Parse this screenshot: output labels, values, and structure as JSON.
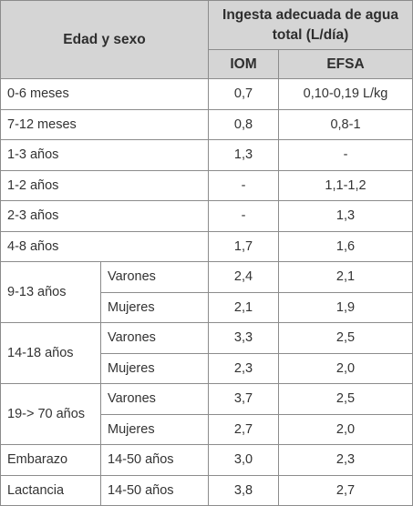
{
  "headers": {
    "group": "Edad y sexo",
    "intake": "Ingesta adecuada de agua total (L/día)",
    "iom": "IOM",
    "efsa": "EFSA"
  },
  "rows": [
    {
      "age": "0-6 meses",
      "iom": "0,7",
      "efsa": "0,10-0,19 L/kg"
    },
    {
      "age": "7-12 meses",
      "iom": "0,8",
      "efsa": "0,8-1"
    },
    {
      "age": "1-3 años",
      "iom": "1,3",
      "efsa": "-"
    },
    {
      "age": "1-2 años",
      "iom": "-",
      "efsa": "1,1-1,2"
    },
    {
      "age": "2-3 años",
      "iom": "-",
      "efsa": "1,3"
    },
    {
      "age": "4-8 años",
      "iom": "1,7",
      "efsa": "1,6"
    }
  ],
  "groups": [
    {
      "age": "9-13 años",
      "sub": [
        {
          "sex": "Varones",
          "iom": "2,4",
          "efsa": "2,1"
        },
        {
          "sex": "Mujeres",
          "iom": "2,1",
          "efsa": "1,9"
        }
      ]
    },
    {
      "age": "14-18 años",
      "sub": [
        {
          "sex": "Varones",
          "iom": "3,3",
          "efsa": "2,5"
        },
        {
          "sex": "Mujeres",
          "iom": "2,3",
          "efsa": "2,0"
        }
      ]
    },
    {
      "age": "19-> 70 años",
      "sub": [
        {
          "sex": "Varones",
          "iom": "3,7",
          "efsa": "2,5"
        },
        {
          "sex": "Mujeres",
          "iom": "2,7",
          "efsa": "2,0"
        }
      ]
    }
  ],
  "special": [
    {
      "group": "Embarazo",
      "age": "14-50 años",
      "iom": "3,0",
      "efsa": "2,3"
    },
    {
      "group": "Lactancia",
      "age": "14-50 años",
      "iom": "3,8",
      "efsa": "2,7"
    }
  ]
}
